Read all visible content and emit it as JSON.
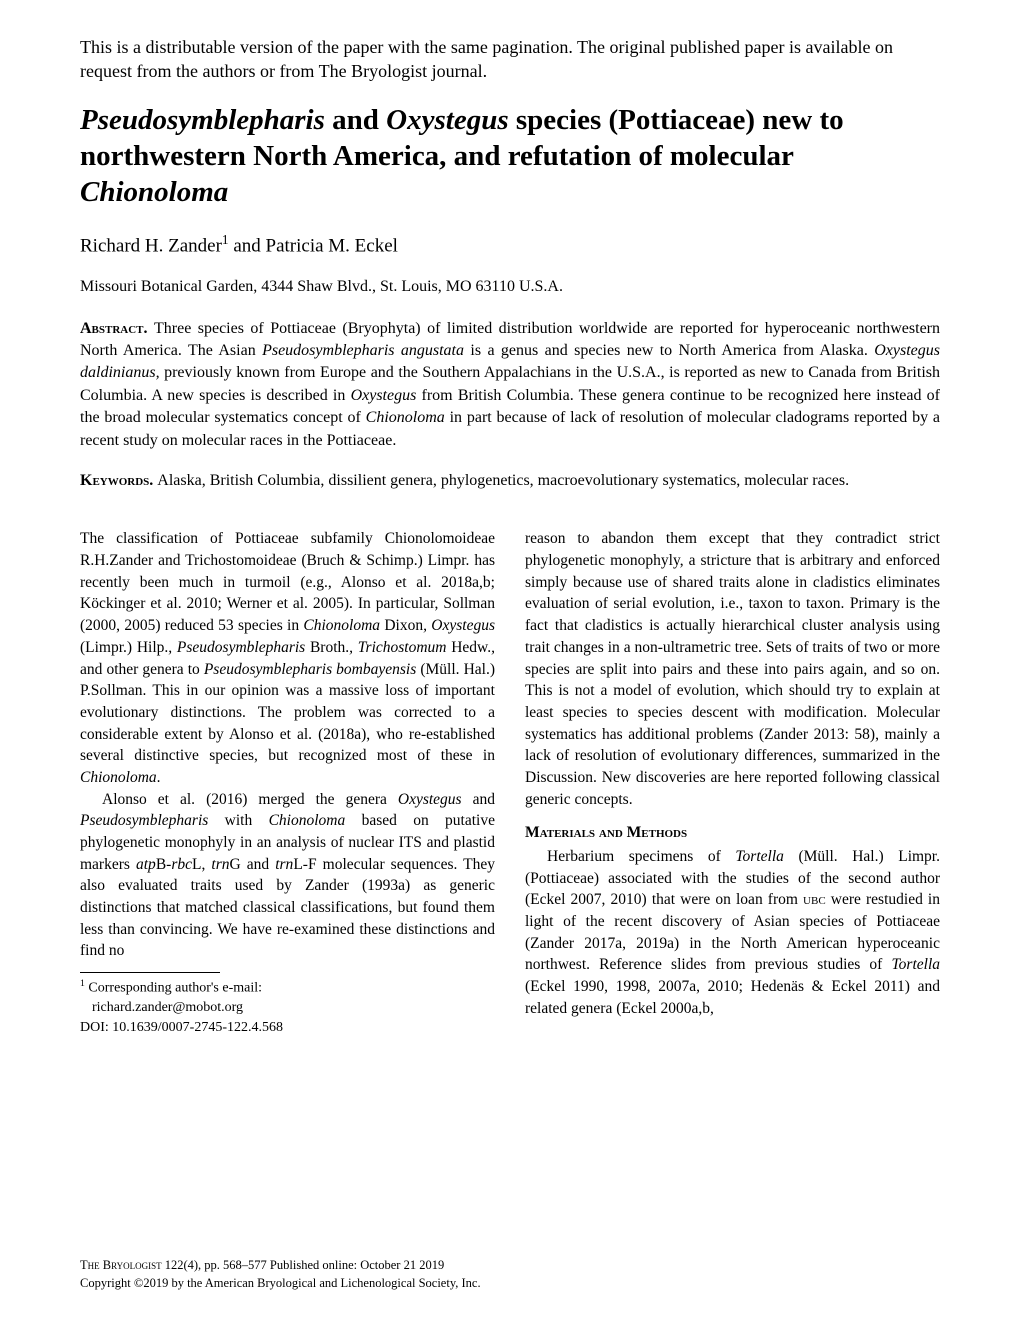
{
  "disclaimer": "This is a distributable version of the paper with the same pagination. The original published paper is available on request from the authors or from The Bryologist journal.",
  "title_parts": {
    "t1": "Pseudosymblepharis",
    "t2": " and ",
    "t3": "Oxystegus",
    "t4": " species (Pottiaceae) new to northwestern North America, and refutation of molecular ",
    "t5": "Chionoloma"
  },
  "authors_pre": "Richard H. Zander",
  "authors_sup": "1",
  "authors_post": " and Patricia M. Eckel",
  "affiliation": "Missouri Botanical Garden, 4344 Shaw Blvd., St. Louis, MO 63110 U.S.A.",
  "abstract_label": "Abstract. ",
  "abstract_body": "Three species of Pottiaceae (Bryophyta) of limited distribution worldwide are reported for hyperoceanic northwestern North America. The Asian ",
  "abstract_i1": "Pseudosymblepharis angustata",
  "abstract_b2": " is a genus and species new to North America from Alaska. ",
  "abstract_i2": "Oxystegus daldinianus,",
  "abstract_b3": " previously known from Europe and the Southern Appalachians in the U.S.A., is reported as new to Canada from British Columbia. A new species is described in ",
  "abstract_i3": "Oxystegus",
  "abstract_b4": " from British Columbia. These genera continue to be recognized here instead of the broad molecular systematics concept of ",
  "abstract_i4": "Chionoloma",
  "abstract_b5": " in part because of lack of resolution of molecular cladograms reported by a recent study on molecular races in the Pottiaceae.",
  "keywords_label": "Keywords. ",
  "keywords_body": "Alaska, British Columbia, dissilient genera, phylogenetics, macroevolutionary systematics, molecular races.",
  "col1_p1_a": "The classification of Pottiaceae subfamily Chionolomoideae R.H.Zander and Trichostomoideae (Bruch & Schimp.) Limpr. has recently been much in turmoil (e.g., Alonso et al. 2018a,b; Köckinger et al. 2010; Werner et al. 2005). In particular, Sollman (2000, 2005) reduced 53 species in ",
  "col1_p1_i1": "Chionoloma",
  "col1_p1_b": " Dixon",
  "col1_p1_i2": ", Oxystegus",
  "col1_p1_c": " (Limpr.) Hilp.",
  "col1_p1_i3": ", Pseudosymblepharis",
  "col1_p1_d": " Broth.",
  "col1_p1_i4": ", Trichostomum",
  "col1_p1_e": " Hedw.",
  "col1_p1_i5": ",",
  "col1_p1_f": " and other genera to ",
  "col1_p1_i6": "Pseudosymblepharis bombayensis",
  "col1_p1_g": " (Müll. Hal.) P.Sollman. This in our opinion was a massive loss of important evolutionary distinctions. The problem was corrected to a considerable extent by Alonso et al. (2018a), who re-established several distinctive species, but recognized most of these in ",
  "col1_p1_i7": "Chionoloma",
  "col1_p1_h": ".",
  "col1_p2_a": "Alonso et al. (2016) merged the genera ",
  "col1_p2_i1": "Oxystegus",
  "col1_p2_b": " and ",
  "col1_p2_i2": "Pseudosymblepharis",
  "col1_p2_c": " with ",
  "col1_p2_i3": "Chionoloma",
  "col1_p2_d": " based on putative phylogenetic monophyly in an analysis of nuclear ITS and plastid markers ",
  "col1_p2_i4": "atp",
  "col1_p2_e": "B-",
  "col1_p2_i5": "rbc",
  "col1_p2_f": "L, ",
  "col1_p2_i6": "trn",
  "col1_p2_g": "G and ",
  "col1_p2_i7": "trn",
  "col1_p2_h": "L-F molecular sequences. They also evaluated traits used by Zander (1993a) as generic distinctions that matched classical classifications, but found them less than convincing. We have re-examined these distinctions and find no",
  "footnote_sup": "1",
  "footnote_label": " Corresponding author's e-mail:",
  "footnote_email": "richard.zander@mobot.org",
  "footnote_doi": "DOI: 10.1639/0007-2745-122.4.568",
  "col2_p1": "reason to abandon them except that they contradict strict phylogenetic monophyly, a stricture that is arbitrary and enforced simply because use of shared traits alone in cladistics eliminates evaluation of serial evolution, i.e., taxon to taxon. Primary is the fact that cladistics is actually hierarchical cluster analysis using trait changes in a non-ultrametric tree. Sets of traits of two or more species are split into pairs and these into pairs again, and so on. This is not a model of evolution, which should try to explain at least species to species descent with modification. Molecular systematics has additional problems (Zander 2013: 58), mainly a lack of resolution of evolutionary differences, summarized in the Discussion. New discoveries are here reported following classical generic concepts.",
  "section_mm": "Materials and Methods",
  "col2_p2_a": "Herbarium specimens of ",
  "col2_p2_i1": "Tortella",
  "col2_p2_b": " (Müll. Hal.) Limpr. (Pottiaceae) associated with the studies of the second author (Eckel 2007, 2010) that were on loan from ",
  "col2_p2_sc": "ubc",
  "col2_p2_c": " were restudied in light of the recent discovery of Asian species of Pottiaceae (Zander 2017a, 2019a) in the North American hyperoceanic northwest. Reference slides from previous studies of ",
  "col2_p2_i2": "Tortella",
  "col2_p2_d": " (Eckel 1990, 1998, 2007a, 2010; Hedenäs & Eckel 2011) and related genera (Eckel 2000a,b,",
  "footer_l1a": "The Bryologist",
  "footer_l1b": " 122(4), pp. 568–577  Published online: October 21 2019",
  "footer_l2": "Copyright ©2019 by the American Bryological and Lichenological Society, Inc."
}
